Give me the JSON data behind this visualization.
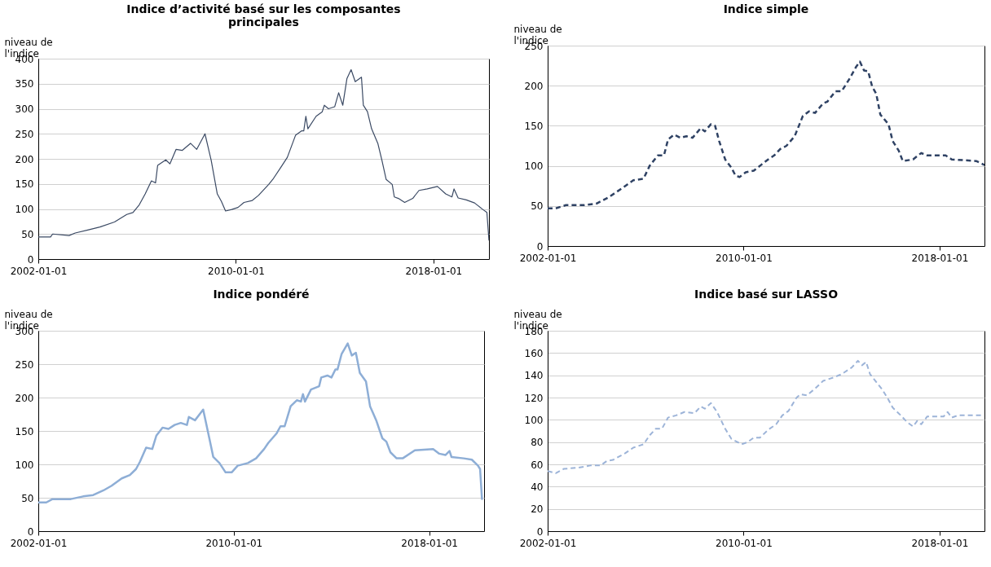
{
  "chart_data": [
    {
      "type": "line",
      "title": "Indice d’activité basé sur les composantes principales",
      "ylabel": "niveau de l'indice",
      "line_style": "solid",
      "grid": "y",
      "xlim": [
        "2002-01-01",
        "2020-04-01"
      ],
      "xticks": [
        "2002-01-01",
        "2010-01-01",
        "2018-01-01"
      ],
      "ylim": [
        0,
        400
      ],
      "yticks": [
        0,
        50,
        100,
        150,
        200,
        250,
        300,
        350,
        400
      ],
      "x": [
        "2002-01",
        "2002-07",
        "2002-08",
        "2003-04",
        "2003-07",
        "2004-01",
        "2004-07",
        "2005-02",
        "2005-08",
        "2005-11",
        "2006-02",
        "2006-05",
        "2006-08",
        "2006-10",
        "2006-11",
        "2007-03",
        "2007-05",
        "2007-08",
        "2007-11",
        "2008-03",
        "2008-06",
        "2008-10",
        "2009-01",
        "2009-04",
        "2009-06",
        "2009-08",
        "2009-11",
        "2010-02",
        "2010-05",
        "2010-09",
        "2010-12",
        "2011-05",
        "2011-07",
        "2011-11",
        "2012-02",
        "2012-06",
        "2012-09",
        "2012-10",
        "2012-11",
        "2012-12",
        "2013-04",
        "2013-07",
        "2013-08",
        "2013-10",
        "2014-01",
        "2014-03",
        "2014-05",
        "2014-07",
        "2014-09",
        "2014-11",
        "2015-02",
        "2015-03",
        "2015-05",
        "2015-07",
        "2015-10",
        "2015-12",
        "2016-02",
        "2016-05",
        "2016-06",
        "2016-08",
        "2016-11",
        "2017-03",
        "2017-06",
        "2017-10",
        "2018-03",
        "2018-07",
        "2018-10",
        "2018-11",
        "2019-01",
        "2019-05",
        "2019-09",
        "2020-01",
        "2020-03",
        "2020-04"
      ],
      "series": [
        {
          "color": "#3b4a64",
          "values": [
            44,
            44,
            50,
            47,
            52,
            58,
            64,
            74,
            89,
            93,
            108,
            130,
            156,
            152,
            187,
            198,
            190,
            219,
            217,
            231,
            219,
            250,
            197,
            130,
            115,
            96,
            99,
            103,
            113,
            117,
            127,
            149,
            159,
            184,
            203,
            247,
            256,
            256,
            285,
            260,
            285,
            294,
            307,
            300,
            304,
            332,
            307,
            360,
            378,
            354,
            363,
            307,
            294,
            260,
            231,
            197,
            159,
            149,
            124,
            121,
            113,
            121,
            137,
            140,
            145,
            130,
            124,
            140,
            122,
            118,
            112,
            99,
            93,
            37
          ]
        }
      ]
    },
    {
      "type": "line",
      "title": "Indice simple",
      "ylabel": "niveau de l'indice",
      "line_style": "dashed",
      "grid": "y",
      "xlim": [
        "2002-01-01",
        "2019-11-01"
      ],
      "xticks": [
        "2002-01-01",
        "2010-01-01",
        "2018-01-01"
      ],
      "ylim": [
        0,
        250
      ],
      "yticks": [
        0,
        50,
        100,
        150,
        200,
        250
      ],
      "x": [
        "2002-01",
        "2002-05",
        "2002-10",
        "2003-07",
        "2004-01",
        "2004-07",
        "2005-02",
        "2005-07",
        "2005-12",
        "2006-03",
        "2006-07",
        "2006-10",
        "2006-12",
        "2007-03",
        "2007-06",
        "2007-09",
        "2007-12",
        "2008-04",
        "2008-06",
        "2008-09",
        "2008-11",
        "2009-01",
        "2009-04",
        "2009-07",
        "2009-09",
        "2009-11",
        "2010-02",
        "2010-06",
        "2010-10",
        "2011-01",
        "2011-04",
        "2011-07",
        "2011-10",
        "2012-02",
        "2012-06",
        "2012-09",
        "2012-12",
        "2013-04",
        "2013-06",
        "2013-10",
        "2014-01",
        "2014-05",
        "2014-08",
        "2014-10",
        "2014-12",
        "2015-02",
        "2015-04",
        "2015-06",
        "2015-08",
        "2015-12",
        "2016-02",
        "2016-05",
        "2016-07",
        "2016-12",
        "2017-04",
        "2017-07",
        "2018-04",
        "2018-07",
        "2019-01",
        "2019-07",
        "2019-11"
      ],
      "series": [
        {
          "color": "#2f4264",
          "values": [
            47,
            47,
            51,
            51,
            53,
            61,
            73,
            82,
            84,
            100,
            113,
            113,
            133,
            139,
            135,
            137,
            135,
            147,
            143,
            152,
            150,
            131,
            108,
            98,
            88,
            86,
            92,
            94,
            102,
            108,
            113,
            121,
            125,
            137,
            162,
            168,
            166,
            178,
            180,
            193,
            193,
            209,
            223,
            230,
            219,
            218,
            199,
            190,
            164,
            152,
            131,
            119,
            106,
            108,
            116,
            113,
            113,
            108,
            107,
            106,
            101
          ]
        }
      ]
    },
    {
      "type": "line",
      "title": "Indice pondéré",
      "ylabel": "niveau de l'indice",
      "line_style": "solid",
      "grid": "y",
      "xlim": [
        "2002-01-01",
        "2020-04-01"
      ],
      "xticks": [
        "2002-01-01",
        "2010-01-01",
        "2018-01-01"
      ],
      "ylim": [
        0,
        300
      ],
      "yticks": [
        0,
        50,
        100,
        150,
        200,
        250,
        300
      ],
      "x": [
        "2002-01",
        "2002-05",
        "2002-08",
        "2003-05",
        "2003-11",
        "2004-04",
        "2004-09",
        "2005-01",
        "2005-06",
        "2005-10",
        "2006-01",
        "2006-03",
        "2006-06",
        "2006-09",
        "2006-11",
        "2007-02",
        "2007-05",
        "2007-08",
        "2007-11",
        "2008-02",
        "2008-03",
        "2008-06",
        "2008-09",
        "2008-10",
        "2009-01",
        "2009-03",
        "2009-06",
        "2009-09",
        "2009-12",
        "2010-03",
        "2010-08",
        "2010-12",
        "2011-04",
        "2011-06",
        "2011-10",
        "2011-12",
        "2012-02",
        "2012-05",
        "2012-08",
        "2012-10",
        "2012-11",
        "2012-12",
        "2013-03",
        "2013-07",
        "2013-08",
        "2013-11",
        "2014-01",
        "2014-03",
        "2014-04",
        "2014-06",
        "2014-09",
        "2014-11",
        "2015-01",
        "2015-03",
        "2015-06",
        "2015-08",
        "2015-11",
        "2016-02",
        "2016-04",
        "2016-06",
        "2016-09",
        "2016-12",
        "2017-06",
        "2018-03",
        "2018-06",
        "2018-09",
        "2018-11",
        "2018-12",
        "2019-06",
        "2019-10",
        "2020-01",
        "2020-02",
        "2020-03"
      ],
      "series": [
        {
          "color": "#8eaed6",
          "values": [
            43,
            43,
            48,
            48,
            52,
            54,
            61,
            68,
            79,
            84,
            93,
            104,
            125,
            123,
            143,
            155,
            153,
            159,
            162,
            159,
            171,
            166,
            178,
            182,
            139,
            111,
            102,
            88,
            88,
            98,
            102,
            109,
            123,
            132,
            146,
            157,
            157,
            187,
            196,
            194,
            205,
            194,
            212,
            217,
            230,
            233,
            230,
            242,
            242,
            265,
            281,
            263,
            267,
            237,
            224,
            187,
            166,
            139,
            134,
            118,
            109,
            109,
            121,
            123,
            116,
            114,
            120,
            111,
            109,
            107,
            98,
            93,
            47
          ]
        }
      ]
    },
    {
      "type": "line",
      "title": "Indice basé sur LASSO",
      "ylabel": "niveau de l'indice",
      "line_style": "dashed",
      "grid": "y",
      "xlim": [
        "2002-01-01",
        "2019-11-01"
      ],
      "xticks": [
        "2002-01-01",
        "2010-01-01",
        "2018-01-01"
      ],
      "ylim": [
        0,
        180
      ],
      "yticks": [
        0,
        20,
        40,
        60,
        80,
        100,
        120,
        140,
        160,
        180
      ],
      "x": [
        "2002-01",
        "2002-05",
        "2002-09",
        "2003-04",
        "2003-10",
        "2004-03",
        "2004-06",
        "2004-09",
        "2005-03",
        "2005-07",
        "2005-12",
        "2006-03",
        "2006-06",
        "2006-09",
        "2006-12",
        "2007-04",
        "2007-08",
        "2008-01",
        "2008-04",
        "2008-06",
        "2008-09",
        "2008-12",
        "2009-04",
        "2009-07",
        "2009-12",
        "2010-03",
        "2010-06",
        "2010-09",
        "2011-01",
        "2011-05",
        "2011-08",
        "2011-11",
        "2012-03",
        "2012-05",
        "2012-08",
        "2012-12",
        "2013-04",
        "2013-09",
        "2014-01",
        "2014-06",
        "2014-09",
        "2014-11",
        "2015-01",
        "2015-03",
        "2015-06",
        "2015-09",
        "2015-12",
        "2016-02",
        "2016-06",
        "2016-09",
        "2016-12",
        "2017-02",
        "2017-04",
        "2017-07",
        "2018-03",
        "2018-05",
        "2018-07",
        "2018-10",
        "2019-06",
        "2019-10"
      ],
      "series": [
        {
          "color": "#9db4d8",
          "values": [
            54,
            52,
            56,
            57,
            59,
            59,
            63,
            64,
            70,
            75,
            78,
            86,
            92,
            92,
            102,
            104,
            107,
            106,
            112,
            110,
            115,
            107,
            92,
            83,
            78,
            80,
            84,
            84,
            91,
            96,
            104,
            108,
            120,
            123,
            122,
            128,
            135,
            138,
            141,
            147,
            153,
            149,
            152,
            141,
            134,
            127,
            118,
            111,
            104,
            98,
            94,
            99,
            96,
            103,
            103,
            107,
            102,
            104,
            104,
            104
          ]
        }
      ]
    }
  ]
}
